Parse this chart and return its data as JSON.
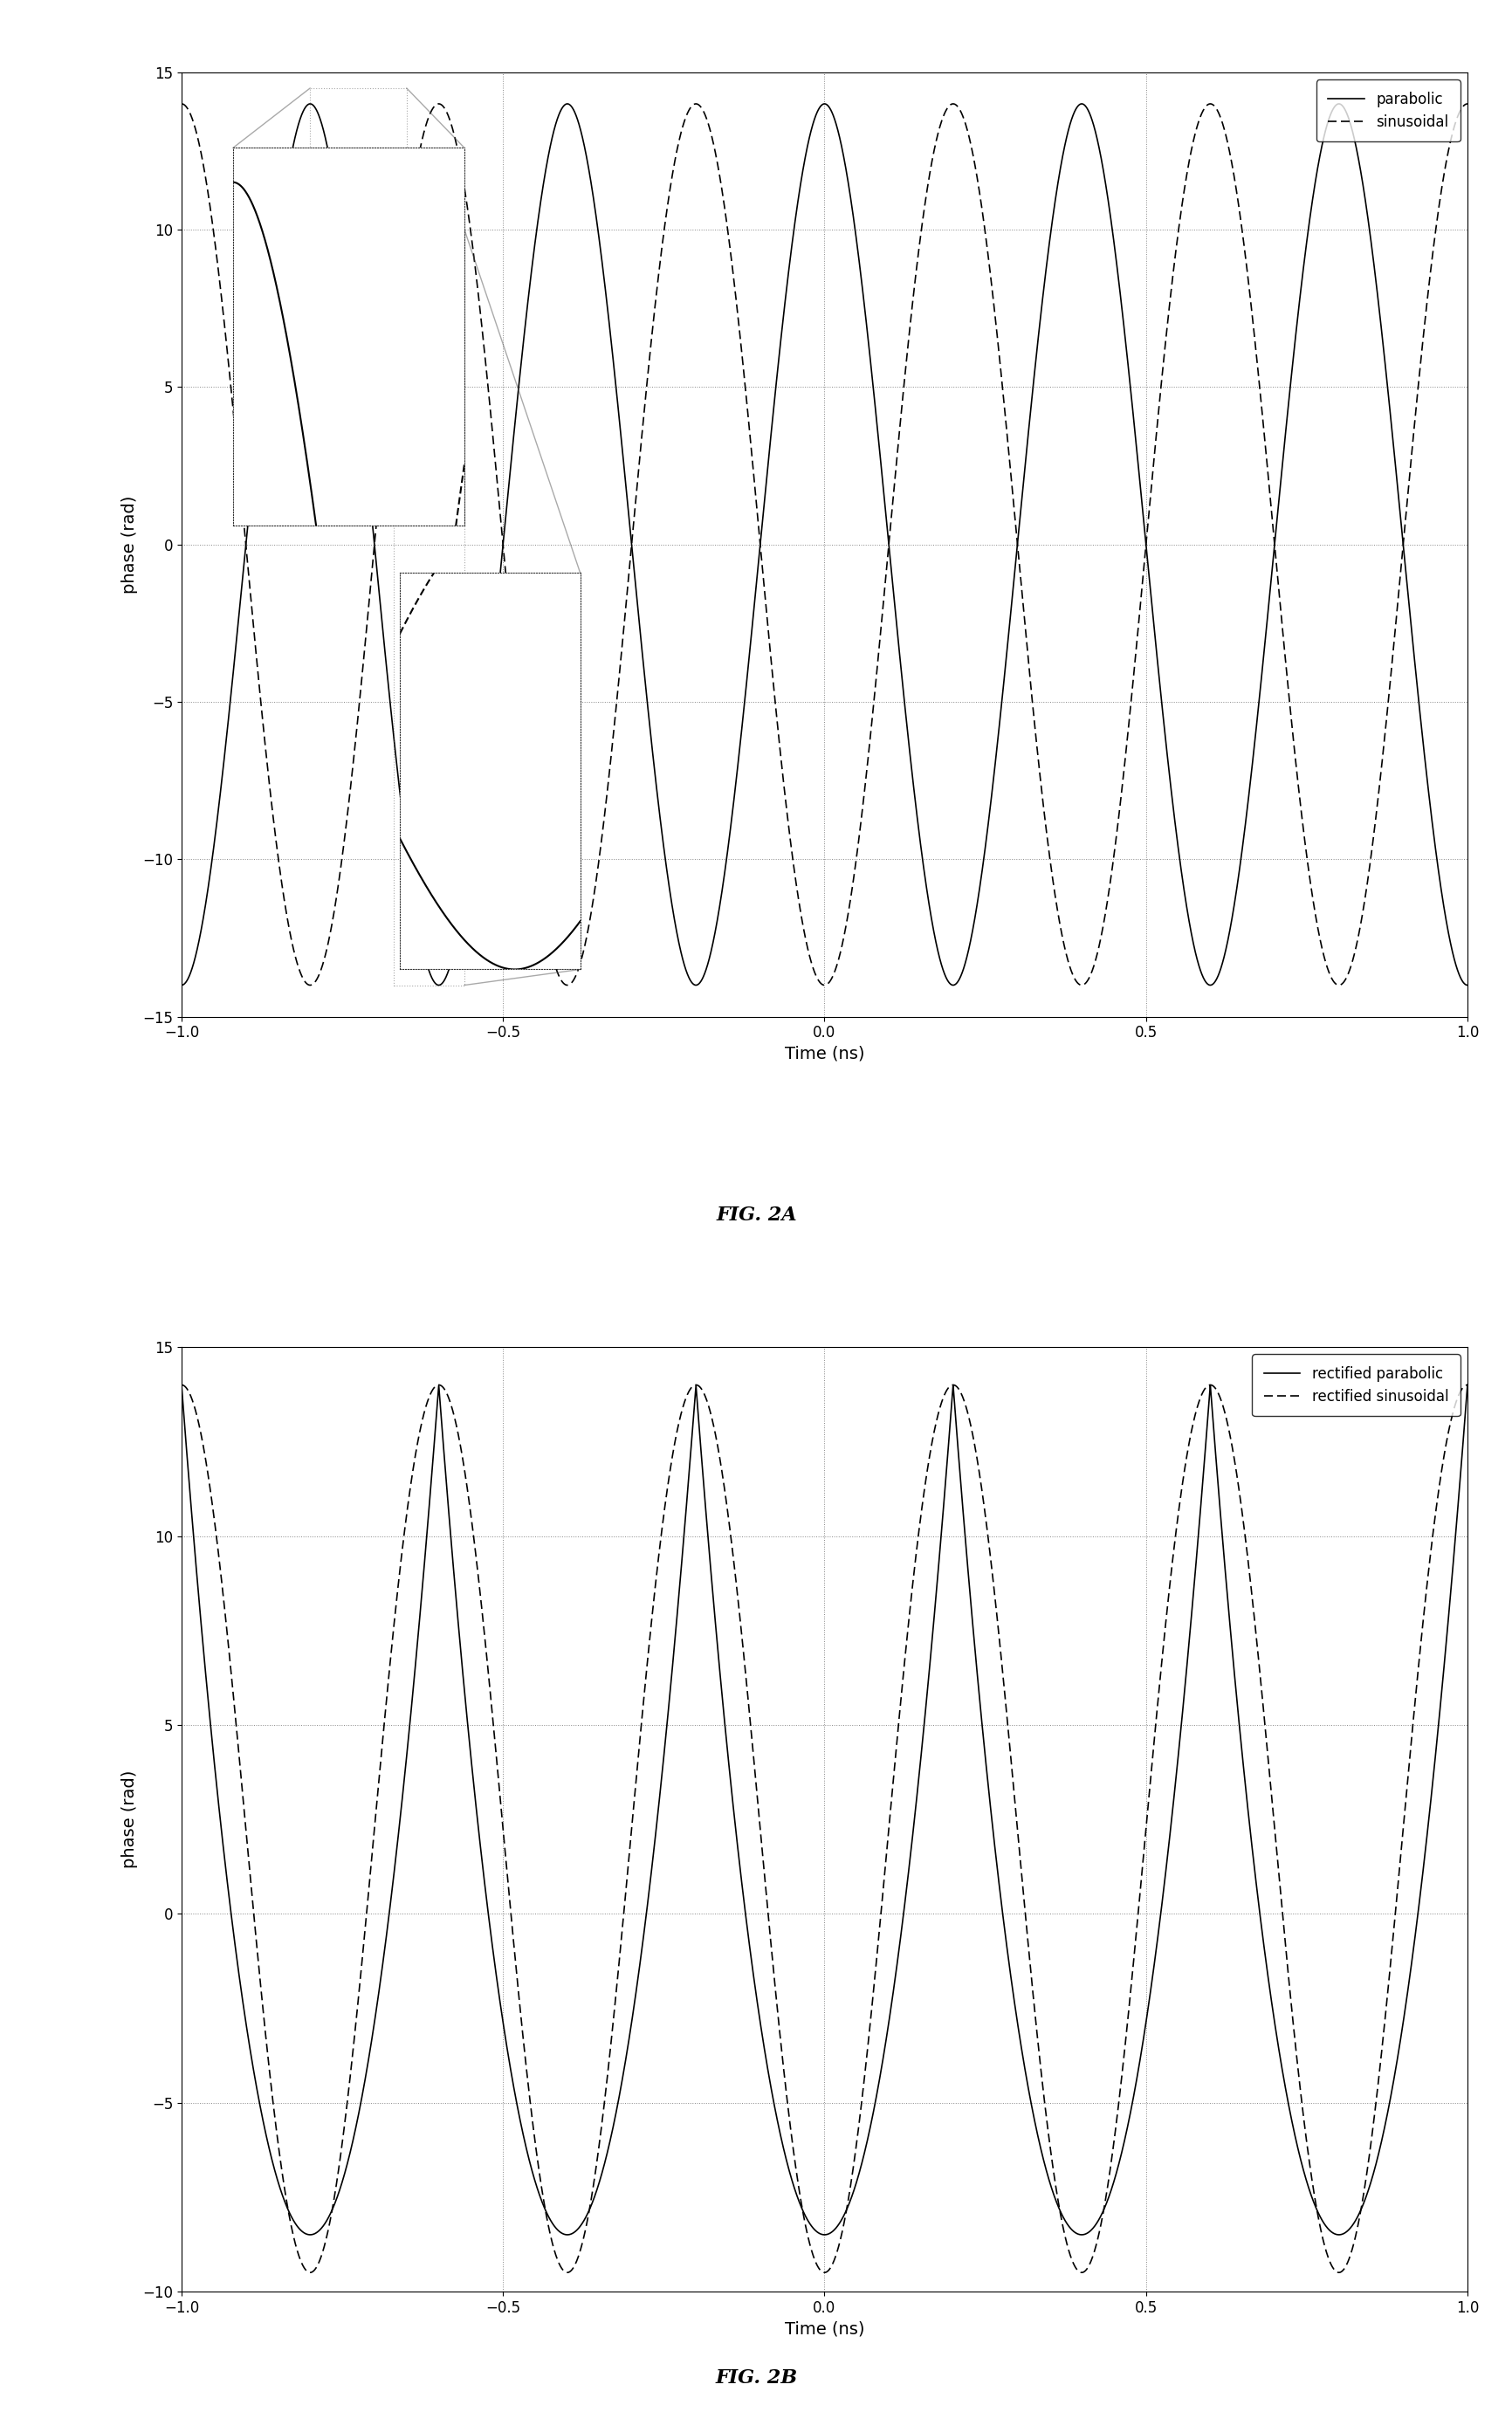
{
  "fig2a": {
    "title": "FIG. 2A",
    "xlabel": "Time (ns)",
    "ylabel": "phase (rad)",
    "xlim": [
      -1,
      1
    ],
    "ylim": [
      -15,
      15
    ],
    "yticks": [
      -15,
      -10,
      -5,
      0,
      5,
      10,
      15
    ],
    "xticks": [
      -1,
      -0.5,
      0,
      0.5,
      1
    ],
    "legend": [
      "parabolic",
      "sinusoidal"
    ],
    "amplitude": 14.0,
    "frequency": 2.5,
    "background": "#ffffff",
    "line_color": "#000000",
    "grid_color": "#aaaaaa"
  },
  "fig2b": {
    "title": "FIG. 2B",
    "xlabel": "Time (ns)",
    "ylabel": "phase (rad)",
    "xlim": [
      -1,
      1
    ],
    "ylim": [
      -10,
      15
    ],
    "yticks": [
      -10,
      -5,
      0,
      5,
      10,
      15
    ],
    "xticks": [
      -1,
      -0.5,
      0,
      0.5,
      1
    ],
    "legend": [
      "rectified parabolic",
      "rectified sinusoidal"
    ],
    "amplitude": 14.0,
    "frequency": 2.5,
    "background": "#ffffff",
    "line_color": "#000000",
    "grid_color": "#aaaaaa"
  }
}
